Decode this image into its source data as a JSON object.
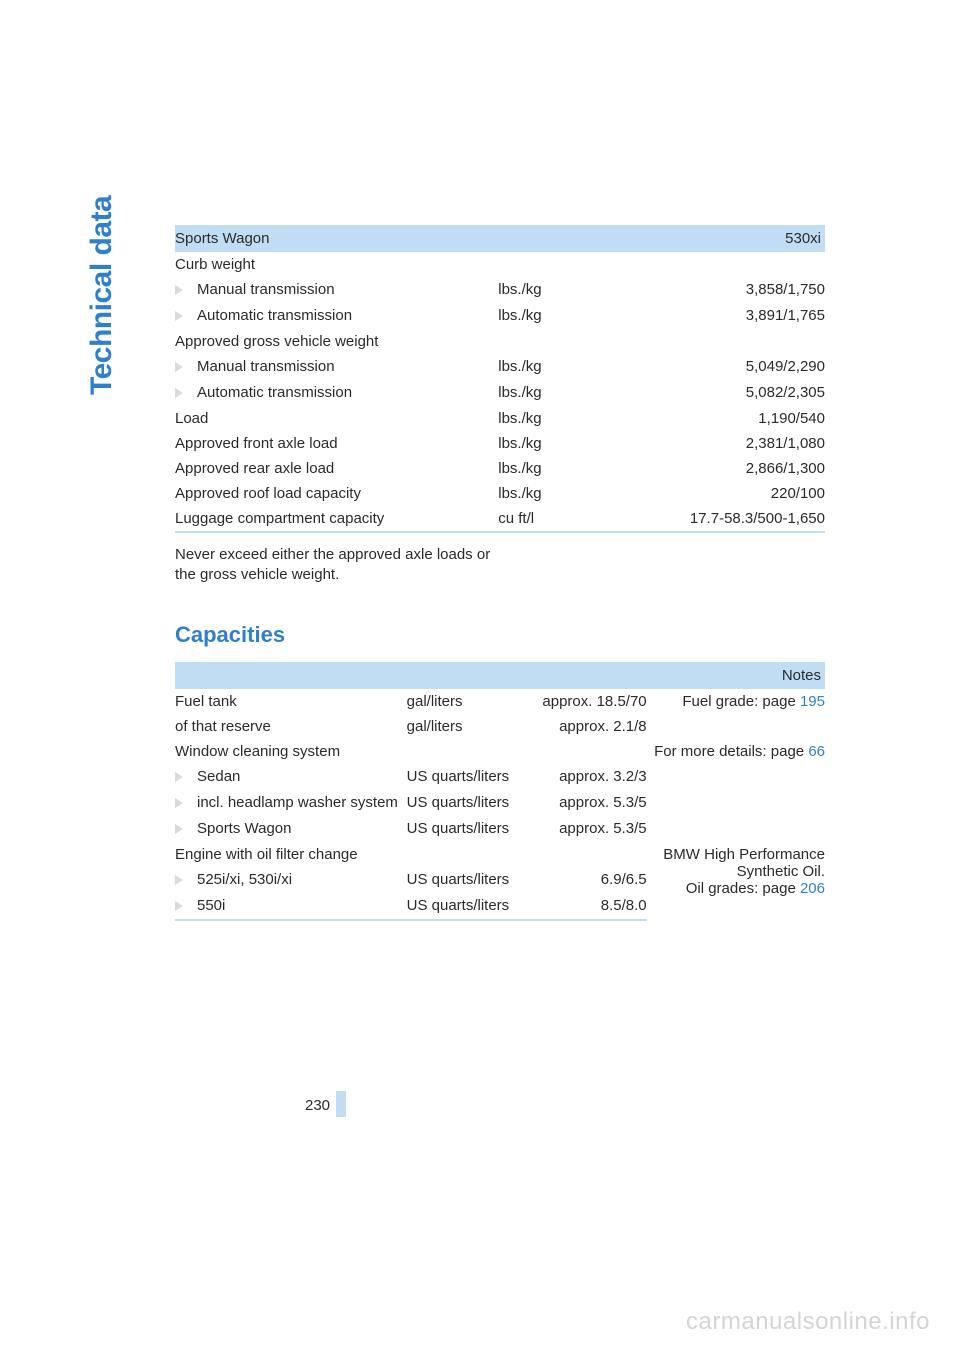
{
  "colors": {
    "accent": "#2f7fcf",
    "header_bg": "#c0ddf4",
    "bullet": "#d8d8e0",
    "text": "#2a2a2a",
    "watermark": "#d4d4d4"
  },
  "side_label": "Technical data",
  "table1": {
    "header": {
      "left": "Sports Wagon",
      "right": "530xi"
    },
    "rows": [
      {
        "label": "Curb weight",
        "unit": "",
        "value": ""
      },
      {
        "indent": true,
        "label": "Manual transmission",
        "unit": "lbs./kg",
        "value": "3,858/1,750"
      },
      {
        "indent": true,
        "label": "Automatic transmission",
        "unit": "lbs./kg",
        "value": "3,891/1,765"
      },
      {
        "label": "Approved gross vehicle weight",
        "unit": "",
        "value": ""
      },
      {
        "indent": true,
        "label": "Manual transmission",
        "unit": "lbs./kg",
        "value": "5,049/2,290"
      },
      {
        "indent": true,
        "label": "Automatic transmission",
        "unit": "lbs./kg",
        "value": "5,082/2,305"
      },
      {
        "label": "Load",
        "unit": "lbs./kg",
        "value": "1,190/540"
      },
      {
        "label": "Approved front axle load",
        "unit": "lbs./kg",
        "value": "2,381/1,080"
      },
      {
        "label": "Approved rear axle load",
        "unit": "lbs./kg",
        "value": "2,866/1,300"
      },
      {
        "label": "Approved roof load capacity",
        "unit": "lbs./kg",
        "value": "220/100"
      },
      {
        "label": "Luggage compartment capacity",
        "unit": "cu ft/l",
        "value": "17.7-58.3/500-1,650"
      }
    ]
  },
  "note1": "Never exceed either the approved axle loads or the gross vehicle weight.",
  "section2_title": "Capacities",
  "table2": {
    "header": {
      "notes": "Notes"
    },
    "rows": [
      {
        "label": "Fuel tank",
        "unit": "gal/liters",
        "value": "approx. 18.5/70",
        "note_pre": "Fuel grade: page ",
        "note_link": "195"
      },
      {
        "label": "of that reserve",
        "unit": "gal/liters",
        "value": "approx. 2.1/8",
        "note": ""
      },
      {
        "label": "Window cleaning system",
        "unit": "",
        "value": "",
        "note_pre": "For more details: page ",
        "note_link": "66"
      },
      {
        "indent": true,
        "label": "Sedan",
        "unit": "US quarts/liters",
        "value": "approx. 3.2/3",
        "note": ""
      },
      {
        "indent": true,
        "label": "incl. headlamp washer system",
        "unit": "US quarts/liters",
        "value": "approx. 5.3/5",
        "note": ""
      },
      {
        "indent": true,
        "label": "Sports Wagon",
        "unit": "US quarts/liters",
        "value": "approx. 5.3/5",
        "note": ""
      },
      {
        "label": "Engine with oil filter change",
        "unit": "",
        "value": "",
        "note_lines": [
          "BMW High Performance",
          "Synthetic Oil."
        ],
        "note_pre": "Oil grades: page ",
        "note_link": "206",
        "rowspan_note": 3
      },
      {
        "indent": true,
        "label": "525i/xi, 530i/xi",
        "unit": "US quarts/liters",
        "value": "6.9/6.5"
      },
      {
        "indent": true,
        "label": "550i",
        "unit": "US quarts/liters",
        "value": "8.5/8.0"
      }
    ]
  },
  "page_number": "230",
  "watermark": "carmanualsonline.info"
}
